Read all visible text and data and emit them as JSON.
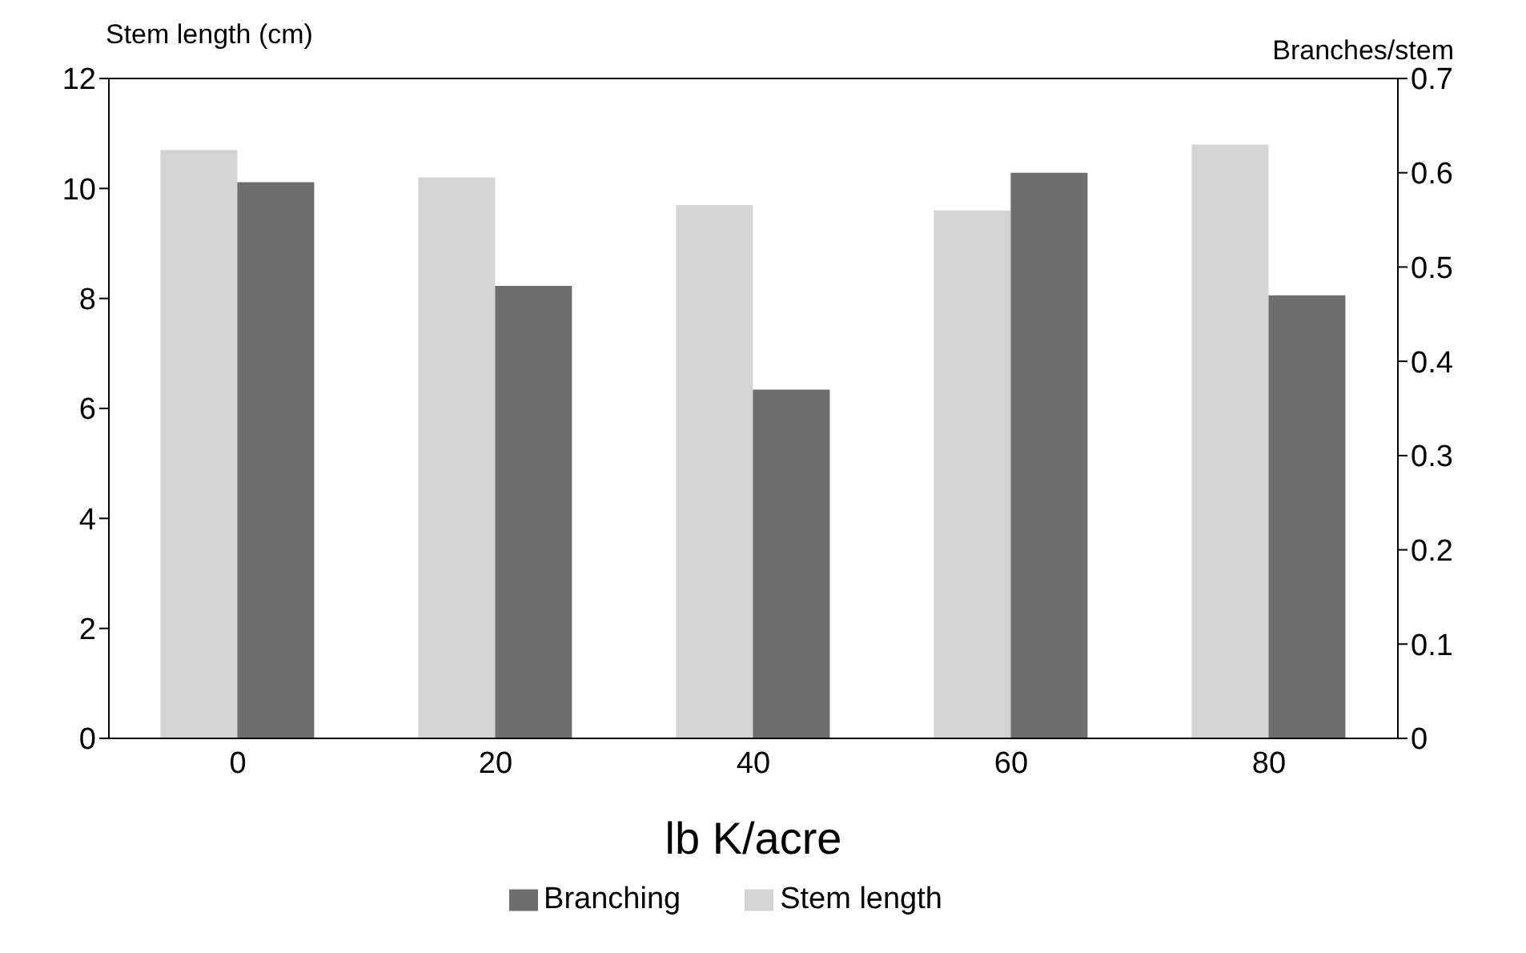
{
  "chart_data": {
    "type": "bar",
    "xlabel": "lb K/acre",
    "ylabel": "Stem length (cm)",
    "y2label": "Branches/stem",
    "categories": [
      "0",
      "20",
      "40",
      "60",
      "80"
    ],
    "series": [
      {
        "name": "Stem length",
        "color": "#d4d4d4",
        "values": [
          10.7,
          10.2,
          9.7,
          9.6,
          10.8
        ]
      },
      {
        "name": "Branching",
        "color": "#6e6e6e",
        "axis": "y2",
        "values": [
          0.59,
          0.48,
          0.37,
          0.6,
          0.47
        ]
      }
    ],
    "ylim": [
      0,
      12
    ],
    "yticks": [
      0,
      2,
      4,
      6,
      8,
      10,
      12
    ],
    "y2lim": [
      0,
      0.7
    ],
    "y2ticks": [
      0,
      0.1,
      0.2,
      0.3,
      0.4,
      0.5,
      0.6,
      0.7
    ],
    "grid": false,
    "legend": "bottom"
  }
}
